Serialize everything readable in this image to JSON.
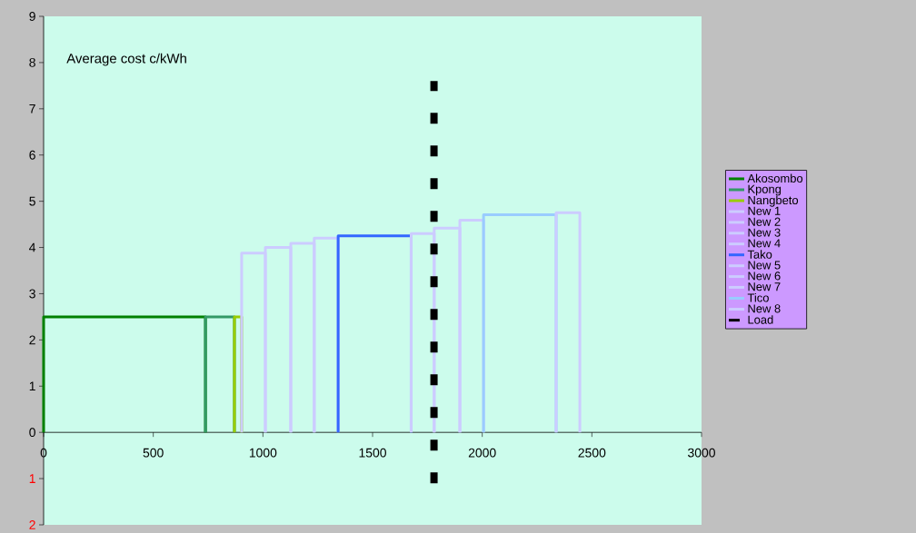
{
  "chart_data": {
    "type": "line",
    "title": "Average cost c/kWh",
    "xlim": [
      0,
      3000
    ],
    "ylim": [
      -2,
      9
    ],
    "xticks": [
      0,
      500,
      1000,
      1500,
      2000,
      2500,
      3000
    ],
    "yticks": [
      {
        "value": -2,
        "label": "2"
      },
      {
        "value": -1,
        "label": "1"
      },
      0,
      1,
      2,
      3,
      4,
      5,
      6,
      7,
      8,
      9
    ],
    "grid": false,
    "legend": "right",
    "series": [
      {
        "name": "Akosombo",
        "color": "#008000",
        "x": [
          0,
          0,
          738,
          738
        ],
        "values": [
          0,
          2.5,
          2.5,
          0
        ]
      },
      {
        "name": "Kpong",
        "color": "#339966",
        "x": [
          738,
          738,
          870,
          870
        ],
        "values": [
          0,
          2.5,
          2.5,
          0
        ]
      },
      {
        "name": "Nangbeto",
        "color": "#99cc00",
        "x": [
          870,
          870,
          903,
          903
        ],
        "values": [
          0,
          2.5,
          2.5,
          0
        ]
      },
      {
        "name": "New 1",
        "color": "#ccccff",
        "x": [
          903,
          903,
          1011,
          1011
        ],
        "values": [
          0,
          3.88,
          3.88,
          0
        ]
      },
      {
        "name": "New 2",
        "color": "#ccccff",
        "x": [
          1011,
          1011,
          1127,
          1127
        ],
        "values": [
          0,
          4.0,
          4.0,
          0
        ]
      },
      {
        "name": "New 3",
        "color": "#ccccff",
        "x": [
          1127,
          1127,
          1234,
          1234
        ],
        "values": [
          0,
          4.09,
          4.09,
          0
        ]
      },
      {
        "name": "New 4",
        "color": "#ccccff",
        "x": [
          1234,
          1234,
          1343,
          1343
        ],
        "values": [
          0,
          4.2,
          4.2,
          0
        ]
      },
      {
        "name": "Tako",
        "color": "#3366ff",
        "x": [
          1343,
          1343,
          1676,
          1676
        ],
        "values": [
          0,
          4.25,
          4.25,
          0
        ]
      },
      {
        "name": "New 5",
        "color": "#ccccff",
        "x": [
          1676,
          1676,
          1781,
          1781
        ],
        "values": [
          0,
          4.3,
          4.3,
          0
        ]
      },
      {
        "name": "New 6",
        "color": "#ccccff",
        "x": [
          1781,
          1781,
          1898,
          1898
        ],
        "values": [
          0,
          4.42,
          4.42,
          0
        ]
      },
      {
        "name": "New 7",
        "color": "#ccccff",
        "x": [
          1898,
          1898,
          2006,
          2006
        ],
        "values": [
          0,
          4.59,
          4.59,
          0
        ]
      },
      {
        "name": "Tico",
        "color": "#99ccff",
        "x": [
          2006,
          2006,
          2337,
          2337
        ],
        "values": [
          0,
          4.71,
          4.71,
          0
        ]
      },
      {
        "name": "New 8",
        "color": "#ccccff",
        "x": [
          2337,
          2337,
          2445,
          2445
        ],
        "values": [
          0,
          4.75,
          4.75,
          0
        ]
      },
      {
        "name": "Load",
        "color": "#000000",
        "line_style": "dashed",
        "x": [
          1780,
          1780
        ],
        "values": [
          -1.1,
          7.6
        ]
      }
    ]
  }
}
